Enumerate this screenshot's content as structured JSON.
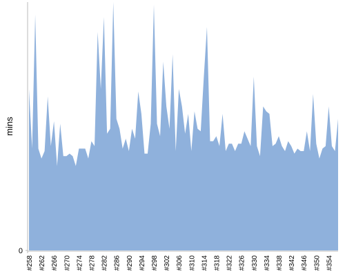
{
  "chart_data": {
    "type": "area",
    "y_label": "mins",
    "color": "#8fb1dc",
    "categories": [
      "#258",
      null,
      null,
      null,
      "#262",
      null,
      null,
      null,
      "#266",
      null,
      null,
      null,
      "#270",
      null,
      null,
      null,
      "#274",
      null,
      null,
      null,
      "#278",
      null,
      null,
      null,
      "#282",
      null,
      null,
      null,
      "#286",
      null,
      null,
      null,
      "#290",
      null,
      null,
      null,
      "#294",
      null,
      null,
      null,
      "#298",
      null,
      null,
      null,
      "#302",
      null,
      null,
      null,
      "#306",
      null,
      null,
      null,
      "#310",
      null,
      null,
      null,
      "#314",
      null,
      null,
      null,
      "#318",
      null,
      null,
      null,
      "#322",
      null,
      null,
      null,
      "#326",
      null,
      null,
      null,
      "#330",
      null,
      null,
      null,
      "#334",
      null,
      null,
      null,
      "#338",
      null,
      null,
      null,
      "#342",
      null,
      null,
      null,
      "#346",
      null,
      null,
      null,
      "#350",
      null,
      null,
      null,
      "#354",
      null,
      null,
      null
    ],
    "values": [
      65,
      41,
      95,
      41,
      37,
      40,
      62,
      42,
      52,
      34,
      51,
      38,
      38,
      39,
      38,
      34,
      41,
      41,
      41,
      37,
      44,
      42,
      88,
      65,
      94,
      47,
      49,
      100,
      53,
      49,
      41,
      45,
      40,
      49,
      45,
      64,
      55,
      39,
      39,
      51,
      99,
      51,
      46,
      76,
      58,
      49,
      79,
      40,
      65,
      58,
      47,
      55,
      40,
      56,
      49,
      48,
      70,
      90,
      44,
      44,
      46,
      42,
      55,
      40,
      43,
      43,
      40,
      43,
      43,
      48,
      45,
      42,
      70,
      42,
      38,
      58,
      56,
      55,
      42,
      43,
      46,
      42,
      40,
      44,
      42,
      39,
      41,
      40,
      40,
      48,
      40,
      63,
      43,
      37,
      41,
      42,
      58,
      42,
      40,
      53
    ],
    "ylim": [
      0,
      100
    ],
    "yticks": [
      0
    ]
  }
}
